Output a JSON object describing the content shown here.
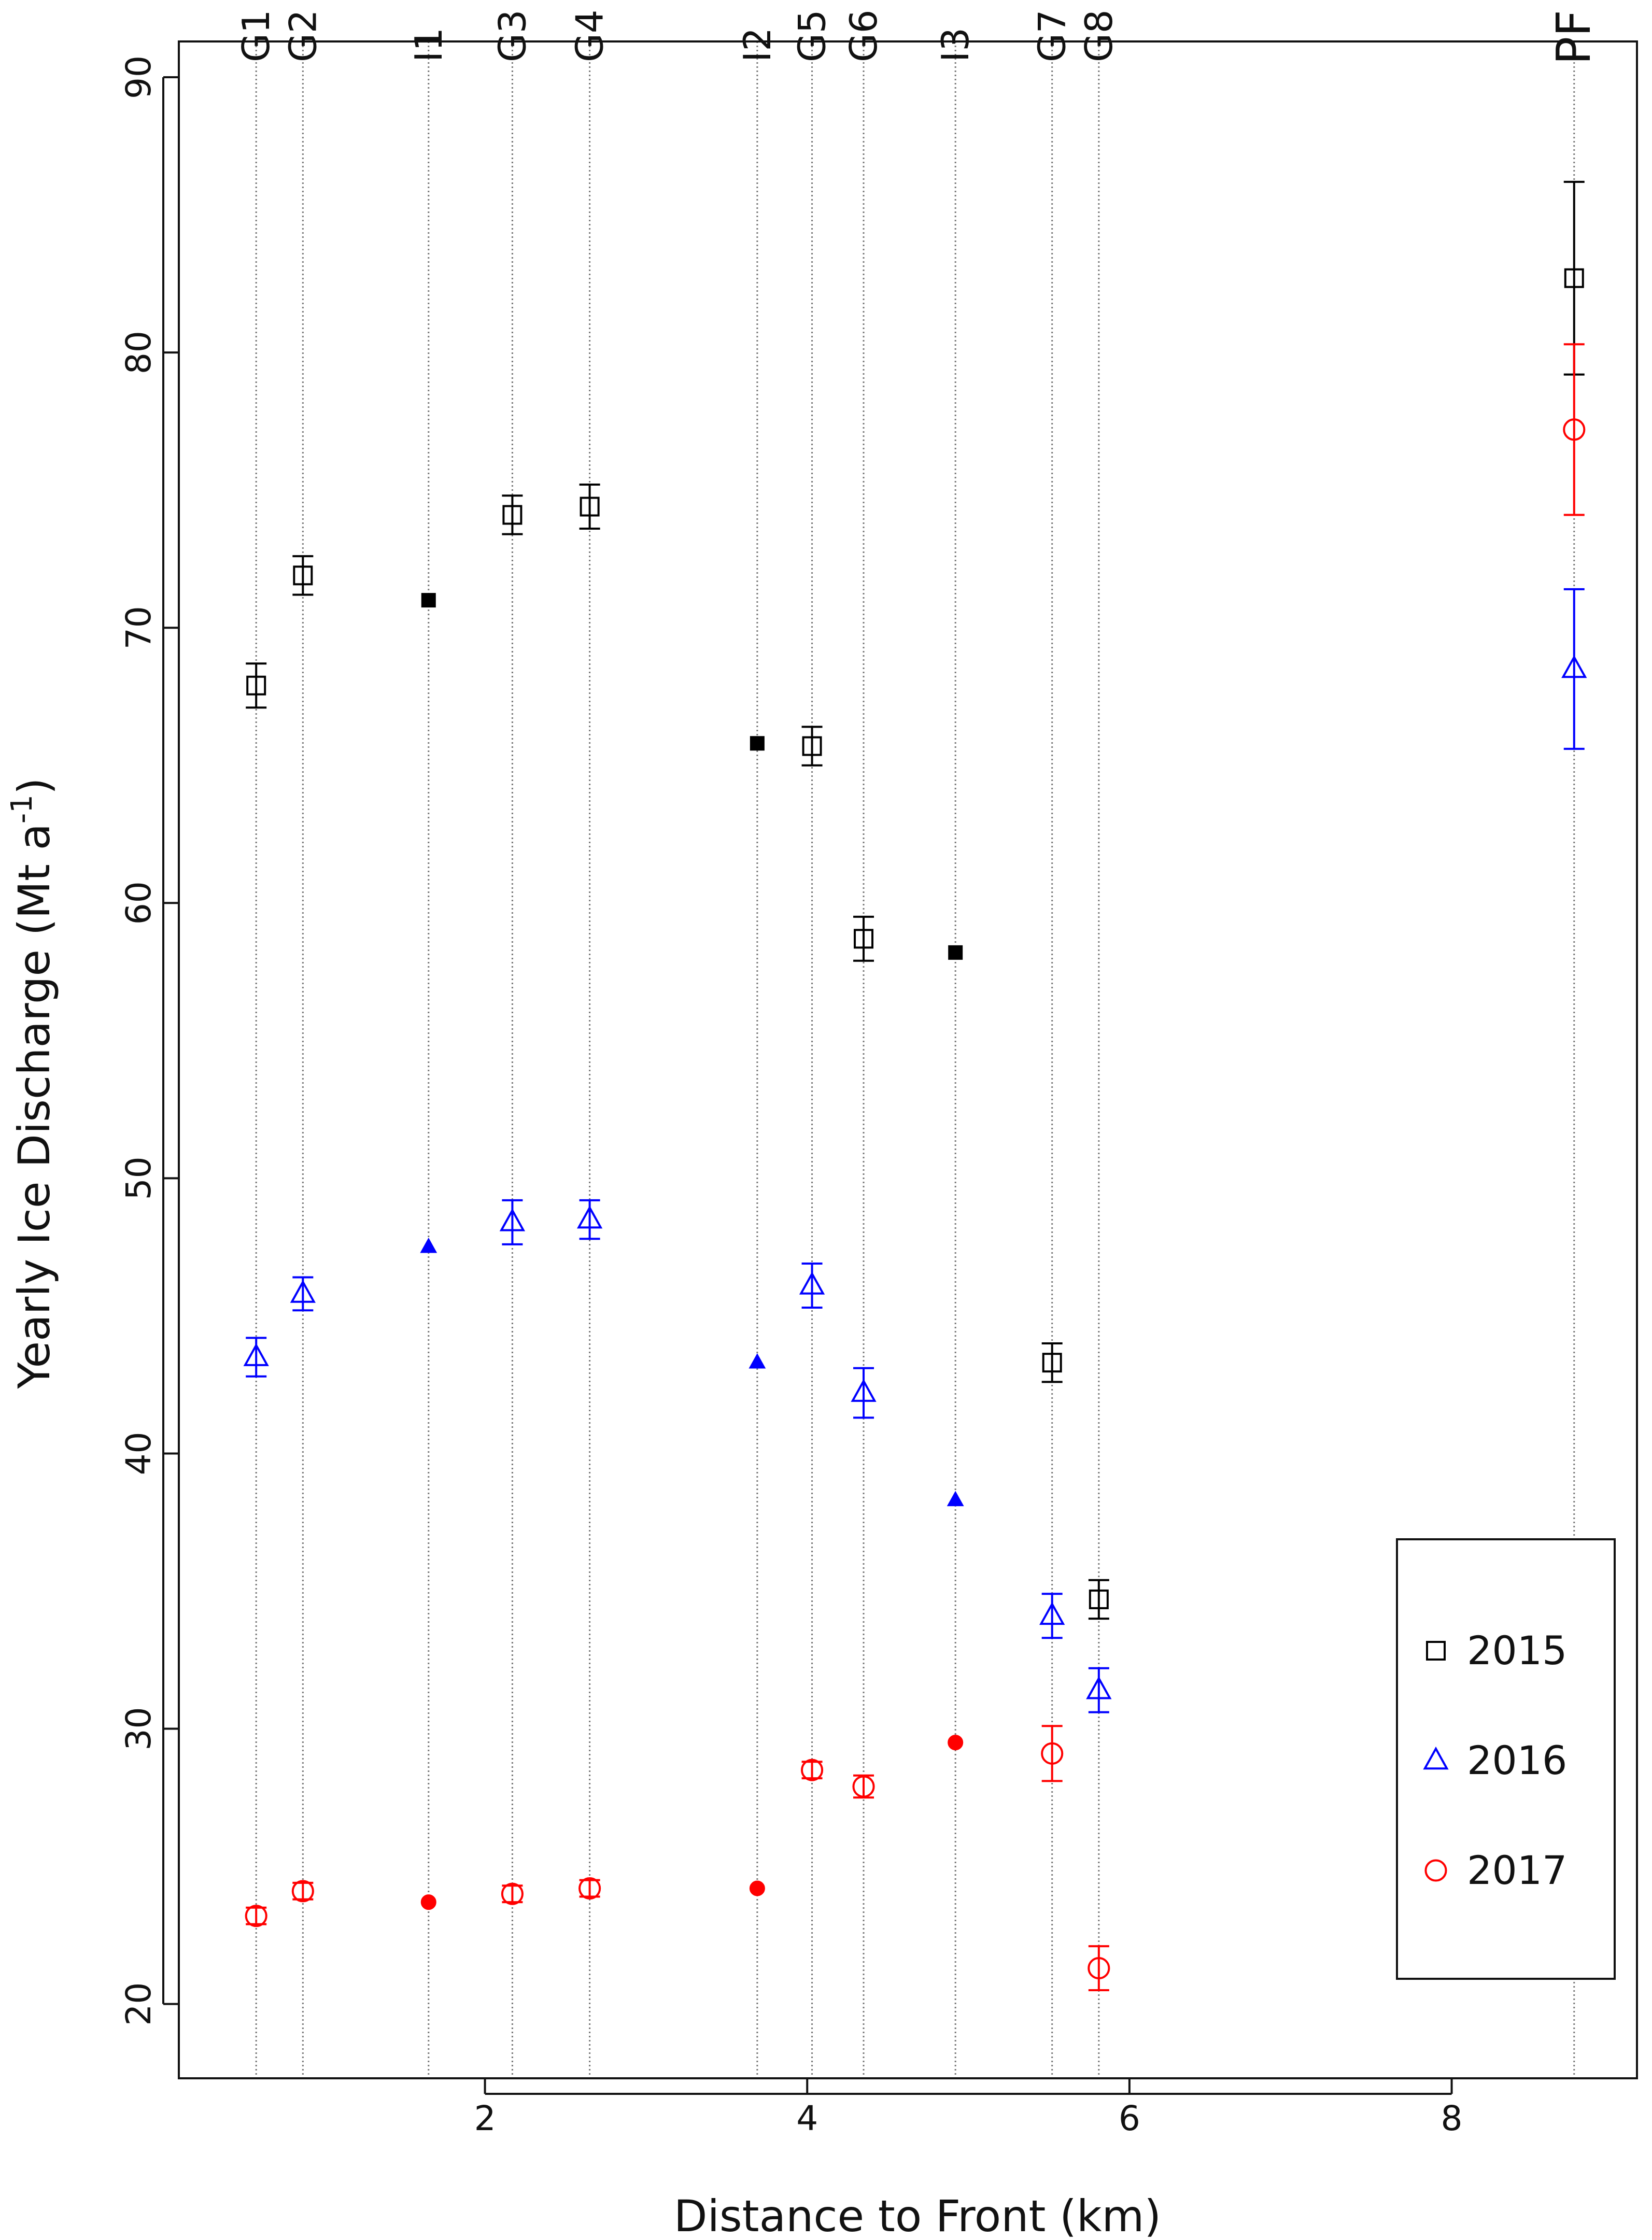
{
  "chart_data": {
    "type": "scatter",
    "title": "",
    "xlabel": "Distance to Front (km)",
    "ylabel_main": "Yearly Ice Discharge (Mt a",
    "ylabel_sup": "-1",
    "ylabel_close": ")",
    "xlim": [
      0.1,
      9.15
    ],
    "ylim": [
      17.3,
      91.3
    ],
    "xticks": [
      2,
      4,
      6,
      8
    ],
    "yticks": [
      20,
      30,
      40,
      50,
      60,
      70,
      80,
      90
    ],
    "legend_position": "bottom-right",
    "gates": [
      {
        "label": "G1",
        "x": 0.58
      },
      {
        "label": "G2",
        "x": 0.87
      },
      {
        "label": "I1",
        "x": 1.65
      },
      {
        "label": "G3",
        "x": 2.17
      },
      {
        "label": "G4",
        "x": 2.65
      },
      {
        "label": "I2",
        "x": 3.69
      },
      {
        "label": "G5",
        "x": 4.03
      },
      {
        "label": "G6",
        "x": 4.35
      },
      {
        "label": "I3",
        "x": 4.92
      },
      {
        "label": "G7",
        "x": 5.52
      },
      {
        "label": "G8",
        "x": 5.81
      },
      {
        "label": "PF",
        "x": 8.76
      }
    ],
    "series": [
      {
        "name": "2015",
        "color": "#000000",
        "marker": "square",
        "points": [
          {
            "x": 0.58,
            "y": 67.9,
            "err": 0.8,
            "interpolated": false
          },
          {
            "x": 0.87,
            "y": 71.9,
            "err": 0.7,
            "interpolated": false
          },
          {
            "x": 1.65,
            "y": 71.0,
            "err": 0,
            "interpolated": true
          },
          {
            "x": 2.17,
            "y": 74.1,
            "err": 0.7,
            "interpolated": false
          },
          {
            "x": 2.65,
            "y": 74.4,
            "err": 0.8,
            "interpolated": false
          },
          {
            "x": 3.69,
            "y": 65.8,
            "err": 0,
            "interpolated": true
          },
          {
            "x": 4.03,
            "y": 65.7,
            "err": 0.7,
            "interpolated": false
          },
          {
            "x": 4.35,
            "y": 58.7,
            "err": 0.8,
            "interpolated": false
          },
          {
            "x": 4.92,
            "y": 58.2,
            "err": 0,
            "interpolated": true
          },
          {
            "x": 5.52,
            "y": 43.3,
            "err": 0.7,
            "interpolated": false
          },
          {
            "x": 5.81,
            "y": 34.7,
            "err": 0.7,
            "interpolated": false
          },
          {
            "x": 8.76,
            "y": 82.7,
            "err": 3.5,
            "interpolated": false
          }
        ]
      },
      {
        "name": "2016",
        "color": "#0000ff",
        "marker": "triangle",
        "points": [
          {
            "x": 0.58,
            "y": 43.5,
            "err": 0.7,
            "interpolated": false
          },
          {
            "x": 0.87,
            "y": 45.8,
            "err": 0.6,
            "interpolated": false
          },
          {
            "x": 1.65,
            "y": 47.5,
            "err": 0,
            "interpolated": true
          },
          {
            "x": 2.17,
            "y": 48.4,
            "err": 0.8,
            "interpolated": false
          },
          {
            "x": 2.65,
            "y": 48.5,
            "err": 0.7,
            "interpolated": false
          },
          {
            "x": 3.69,
            "y": 43.3,
            "err": 0,
            "interpolated": true
          },
          {
            "x": 4.03,
            "y": 46.1,
            "err": 0.8,
            "interpolated": false
          },
          {
            "x": 4.35,
            "y": 42.2,
            "err": 0.9,
            "interpolated": false
          },
          {
            "x": 4.92,
            "y": 38.3,
            "err": 0,
            "interpolated": true
          },
          {
            "x": 5.52,
            "y": 34.1,
            "err": 0.8,
            "interpolated": false
          },
          {
            "x": 5.81,
            "y": 31.4,
            "err": 0.8,
            "interpolated": false
          },
          {
            "x": 8.76,
            "y": 68.5,
            "err": 2.9,
            "interpolated": false
          }
        ]
      },
      {
        "name": "2017",
        "color": "#ff0000",
        "marker": "circle",
        "points": [
          {
            "x": 0.58,
            "y": 23.2,
            "err": 0.3,
            "interpolated": false
          },
          {
            "x": 0.87,
            "y": 24.1,
            "err": 0.3,
            "interpolated": false
          },
          {
            "x": 1.65,
            "y": 23.7,
            "err": 0,
            "interpolated": true
          },
          {
            "x": 2.17,
            "y": 24.0,
            "err": 0.3,
            "interpolated": false
          },
          {
            "x": 2.65,
            "y": 24.2,
            "err": 0.3,
            "interpolated": false
          },
          {
            "x": 3.69,
            "y": 24.2,
            "err": 0,
            "interpolated": true
          },
          {
            "x": 4.03,
            "y": 28.5,
            "err": 0.3,
            "interpolated": false
          },
          {
            "x": 4.35,
            "y": 27.9,
            "err": 0.4,
            "interpolated": false
          },
          {
            "x": 4.92,
            "y": 29.5,
            "err": 0,
            "interpolated": true
          },
          {
            "x": 5.52,
            "y": 29.1,
            "err": 1.0,
            "interpolated": false
          },
          {
            "x": 5.81,
            "y": 21.3,
            "err": 0.8,
            "interpolated": false
          },
          {
            "x": 8.76,
            "y": 77.2,
            "err": 3.1,
            "interpolated": false
          }
        ]
      }
    ]
  }
}
